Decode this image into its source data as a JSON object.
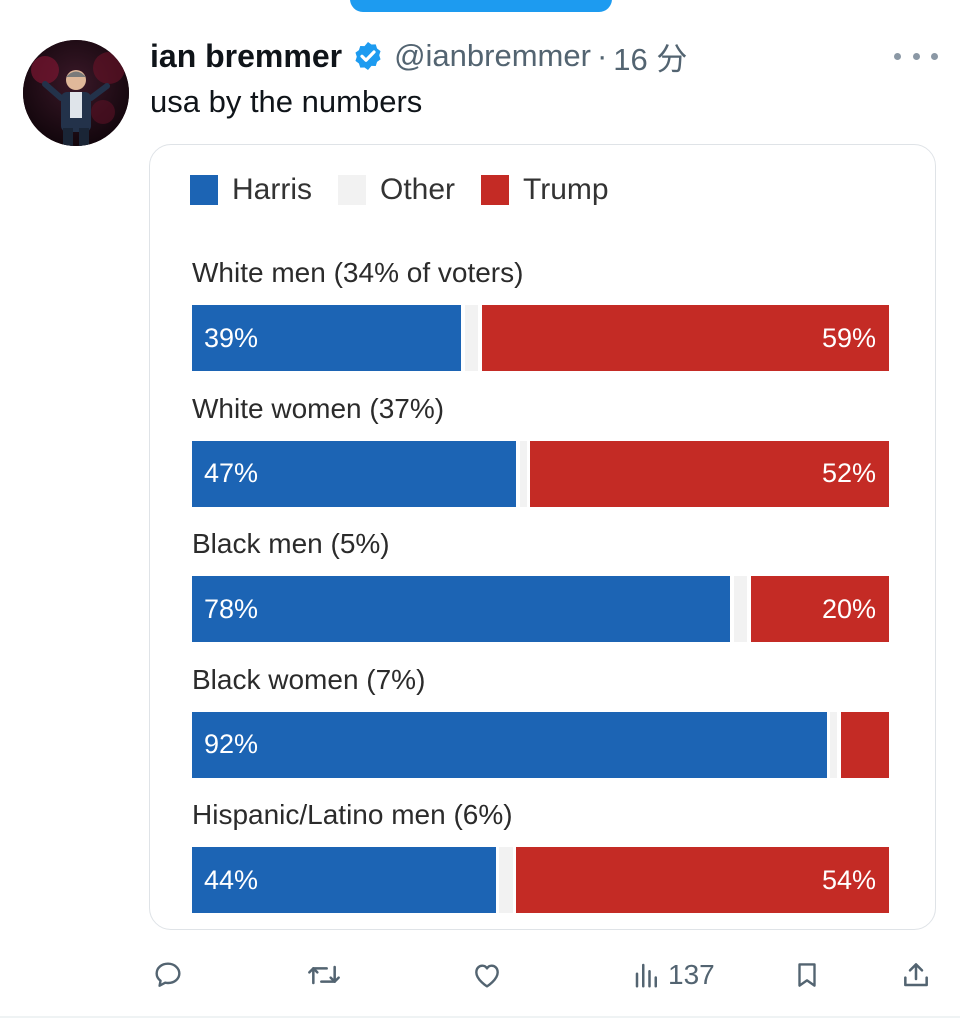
{
  "tweet": {
    "author_name": "ian bremmer",
    "handle": "@ianbremmer",
    "separator": "·",
    "time": "16 分",
    "text": "usa by the numbers",
    "verified": true
  },
  "chart_data": {
    "type": "bar",
    "stacked": true,
    "orientation": "horizontal",
    "legend": [
      "Harris",
      "Other",
      "Trump"
    ],
    "colors": {
      "Harris": "#1c64b4",
      "Other": "#f2f2f2",
      "Trump": "#c42b25"
    },
    "categories": [
      "White men (34% of voters)",
      "White women (37%)",
      "Black men (5%)",
      "Black women (7%)",
      "Hispanic/Latino men (6%)"
    ],
    "series": [
      {
        "name": "Harris",
        "values": [
          39,
          47,
          78,
          92,
          44
        ],
        "labels": [
          "39%",
          "47%",
          "78%",
          "92%",
          "44%"
        ]
      },
      {
        "name": "Other",
        "values": [
          2,
          1,
          2,
          1,
          2
        ],
        "labels": [
          "",
          "",
          "",
          "",
          ""
        ]
      },
      {
        "name": "Trump",
        "values": [
          59,
          52,
          20,
          7,
          54
        ],
        "labels": [
          "59%",
          "52%",
          "20%",
          "",
          "54%"
        ]
      }
    ]
  },
  "actions": {
    "reply_icon": "reply-icon",
    "retweet_icon": "retweet-icon",
    "like_icon": "heart-icon",
    "views_icon": "views-icon",
    "views_count": "137",
    "bookmark_icon": "bookmark-icon",
    "share_icon": "share-icon"
  }
}
